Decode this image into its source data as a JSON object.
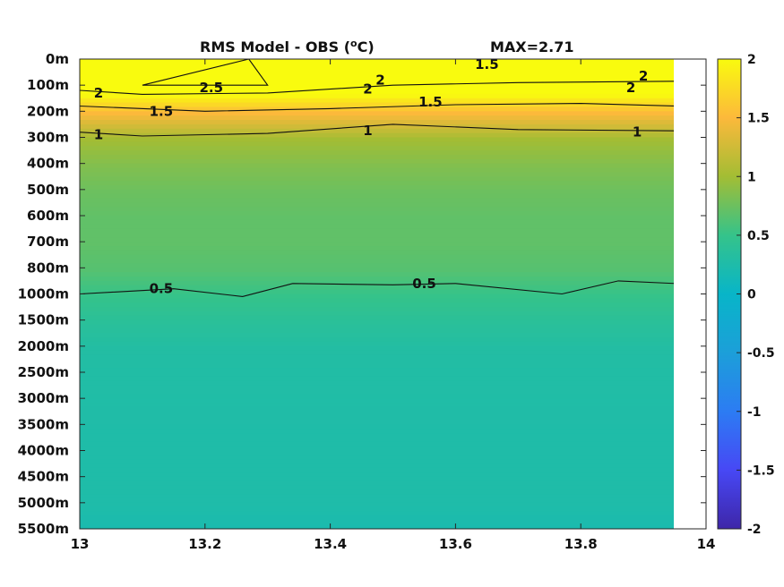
{
  "chart_data": {
    "type": "heatmap",
    "title": "RMS Model - OBS (°C)",
    "title_main": "RMS Model - OBS (",
    "title_sup": "o",
    "title_end": "C)",
    "max_label": "MAX=2.71",
    "x_ticks": [
      "13",
      "13.2",
      "13.4",
      "13.6",
      "13.8",
      "14"
    ],
    "x_range": [
      13,
      14
    ],
    "x_data_extent": [
      13,
      13.95
    ],
    "y_ticks": [
      "0m",
      "100m",
      "200m",
      "300m",
      "400m",
      "500m",
      "600m",
      "700m",
      "800m",
      "1000m",
      "1500m",
      "2000m",
      "2500m",
      "3000m",
      "3500m",
      "4000m",
      "4500m",
      "5000m",
      "5500m"
    ],
    "colorbar": {
      "range": [
        -2,
        2
      ],
      "ticks": [
        "2",
        "1.5",
        "1",
        "0.5",
        "0",
        "-0.5",
        "-1",
        "-1.5",
        "-2"
      ],
      "colormap": "parula"
    },
    "depth_levels": [
      "0m",
      "100m",
      "200m",
      "300m",
      "400m",
      "500m",
      "600m",
      "700m",
      "800m",
      "1000m",
      "1500m",
      "2000m",
      "2500m",
      "3000m",
      "3500m",
      "4000m",
      "4500m",
      "5000m",
      "5500m"
    ],
    "profile_values": [
      2.6,
      2.2,
      1.5,
      1.0,
      0.85,
      0.75,
      0.7,
      0.7,
      0.65,
      0.5,
      0.38,
      0.3,
      0.28,
      0.27,
      0.26,
      0.26,
      0.26,
      0.25,
      0.2
    ],
    "contours": [
      {
        "level": "2.5",
        "x": [
          13.1,
          13.27,
          13.3,
          13.1
        ],
        "y_depth_index": [
          1.0,
          0.0,
          1.0,
          1.0
        ]
      },
      {
        "level": "2",
        "x": [
          13.0,
          13.1,
          13.3,
          13.5,
          13.7,
          13.95
        ],
        "y_depth_index": [
          1.2,
          1.35,
          1.3,
          1.0,
          0.9,
          0.85
        ]
      },
      {
        "level": "1.5",
        "x": [
          13.0,
          13.2,
          13.4,
          13.6,
          13.8,
          13.95
        ],
        "y_depth_index": [
          1.8,
          2.0,
          1.9,
          1.75,
          1.7,
          1.8
        ]
      },
      {
        "level": "1",
        "x": [
          13.0,
          13.1,
          13.3,
          13.5,
          13.7,
          13.95
        ],
        "y_depth_index": [
          2.8,
          2.95,
          2.85,
          2.5,
          2.7,
          2.75
        ]
      },
      {
        "level": "0.5",
        "x": [
          13.0,
          13.15,
          13.26,
          13.34,
          13.5,
          13.6,
          13.77,
          13.86,
          13.95
        ],
        "y_depth_index": [
          9.0,
          8.8,
          9.1,
          8.6,
          8.65,
          8.6,
          9.0,
          8.5,
          8.6
        ]
      }
    ],
    "contour_labels": [
      {
        "text": "2.5",
        "x": 13.21,
        "y_depth_index": 1.1
      },
      {
        "text": "2",
        "x": 13.03,
        "y_depth_index": 1.3
      },
      {
        "text": "2",
        "x": 13.46,
        "y_depth_index": 1.15
      },
      {
        "text": "2",
        "x": 13.48,
        "y_depth_index": 0.8
      },
      {
        "text": "2",
        "x": 13.88,
        "y_depth_index": 1.1
      },
      {
        "text": "2",
        "x": 13.9,
        "y_depth_index": 0.65
      },
      {
        "text": "1.5",
        "x": 13.13,
        "y_depth_index": 2.0
      },
      {
        "text": "1.5",
        "x": 13.56,
        "y_depth_index": 1.65
      },
      {
        "text": "1.5",
        "x": 13.65,
        "y_depth_index": 0.2
      },
      {
        "text": "1",
        "x": 13.03,
        "y_depth_index": 2.9
      },
      {
        "text": "1",
        "x": 13.46,
        "y_depth_index": 2.75
      },
      {
        "text": "1",
        "x": 13.89,
        "y_depth_index": 2.8
      },
      {
        "text": "0.5",
        "x": 13.13,
        "y_depth_index": 8.8
      },
      {
        "text": "0.5",
        "x": 13.55,
        "y_depth_index": 8.6
      }
    ]
  }
}
